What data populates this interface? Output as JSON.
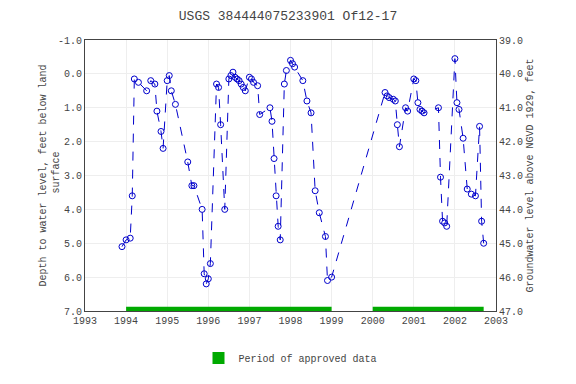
{
  "chart_data": {
    "type": "line",
    "title": "USGS 384444075233901 Of12-17",
    "y_label": "Depth to water level, feet below land\n surface",
    "y2_label": "Groundwater level above NGVD 1929, feet",
    "xlim": [
      1993,
      2003
    ],
    "xticks": [
      1993,
      1994,
      1995,
      1996,
      1997,
      1998,
      1999,
      2000,
      2001,
      2002,
      2003
    ],
    "ylim": [
      7.0,
      -1.0
    ],
    "yticks": [
      {
        "value": -1.0,
        "label": "-1.0"
      },
      {
        "value": 0.0,
        "label": "0.0"
      },
      {
        "value": 1.0,
        "label": "1.0"
      },
      {
        "value": 2.0,
        "label": "2.0"
      },
      {
        "value": 3.0,
        "label": "3.0"
      },
      {
        "value": 4.0,
        "label": "4.0"
      },
      {
        "value": 5.0,
        "label": "5.0"
      },
      {
        "value": 6.0,
        "label": "6.0"
      },
      {
        "value": 7.0,
        "label": "7.0"
      }
    ],
    "y2lim": [
      47.0,
      39.0
    ],
    "y2ticks": [
      {
        "value": 39.0,
        "label": "39.0"
      },
      {
        "value": 40.0,
        "label": "40.0"
      },
      {
        "value": 41.0,
        "label": "41.0"
      },
      {
        "value": 42.0,
        "label": "42.0"
      },
      {
        "value": 43.0,
        "label": "43.0"
      },
      {
        "value": 44.0,
        "label": "44.0"
      },
      {
        "value": 45.0,
        "label": "45.0"
      },
      {
        "value": 46.0,
        "label": "46.0"
      },
      {
        "value": 47.0,
        "label": "47.0"
      }
    ],
    "grid": true,
    "legend": "bottom",
    "series": [
      {
        "type": "line",
        "color": "#0000cc",
        "marker": "circle-open",
        "line_style": "dashed",
        "x": [
          1993.9,
          1994.0,
          1994.1,
          1994.15,
          1994.2,
          1994.3,
          1994.5,
          1994.6,
          1994.7,
          1994.75,
          1994.85,
          1994.9,
          1995.0,
          1995.05,
          1995.1,
          1995.2,
          1995.5,
          1995.6,
          1995.65,
          1995.85,
          1995.9,
          1995.95,
          1996.0,
          1996.05,
          1996.2,
          1996.25,
          1996.3,
          1996.4,
          1996.5,
          1996.55,
          1996.6,
          1996.65,
          1996.7,
          1996.75,
          1996.8,
          1996.85,
          1996.9,
          1997.0,
          1997.05,
          1997.1,
          1997.2,
          1997.25,
          1997.5,
          1997.55,
          1997.6,
          1997.65,
          1997.7,
          1997.75,
          1997.85,
          1997.9,
          1998.0,
          1998.05,
          1998.1,
          1998.3,
          1998.4,
          1998.5,
          1998.6,
          1998.7,
          1998.85,
          1998.9,
          1999.0,
          2000.3,
          2000.35,
          2000.4,
          2000.5,
          2000.55,
          2000.6,
          2000.65,
          2000.8,
          2000.85,
          2001.0,
          2001.05,
          2001.1,
          2001.15,
          2001.2,
          2001.25,
          2001.6,
          2001.65,
          2001.7,
          2001.75,
          2001.8,
          2002.0,
          2002.05,
          2002.1,
          2002.2,
          2002.3,
          2002.4,
          2002.5,
          2002.6,
          2002.65,
          2002.7
        ],
        "values": [
          5.1,
          4.9,
          4.85,
          3.6,
          0.15,
          0.25,
          0.5,
          0.2,
          0.3,
          1.1,
          1.7,
          2.2,
          0.2,
          0.05,
          0.5,
          0.9,
          2.6,
          3.3,
          3.3,
          4.0,
          5.9,
          6.2,
          6.05,
          5.6,
          0.3,
          0.4,
          1.5,
          4.0,
          0.15,
          0.05,
          -0.05,
          0.1,
          0.15,
          0.2,
          0.3,
          0.4,
          0.5,
          0.1,
          0.15,
          0.25,
          0.35,
          1.2,
          1.0,
          1.4,
          2.5,
          3.6,
          4.5,
          4.9,
          0.3,
          -0.1,
          -0.4,
          -0.3,
          -0.2,
          0.2,
          0.8,
          1.15,
          3.45,
          4.1,
          4.8,
          6.1,
          6.0,
          0.55,
          0.65,
          0.7,
          0.75,
          0.8,
          1.5,
          2.15,
          1.0,
          1.1,
          0.15,
          0.2,
          0.85,
          1.05,
          1.1,
          1.15,
          1.0,
          3.05,
          4.35,
          4.4,
          4.5,
          -0.45,
          0.85,
          1.05,
          1.9,
          3.4,
          3.55,
          3.6,
          1.55,
          4.35,
          5.0
        ]
      },
      {
        "type": "bar",
        "orientation": "horizontal",
        "name": "Period of approved data",
        "color": "#00aa00",
        "ranges": [
          [
            1994.0,
            1999.0
          ],
          [
            2000.0,
            2002.7
          ]
        ],
        "y": 7.0
      }
    ]
  }
}
